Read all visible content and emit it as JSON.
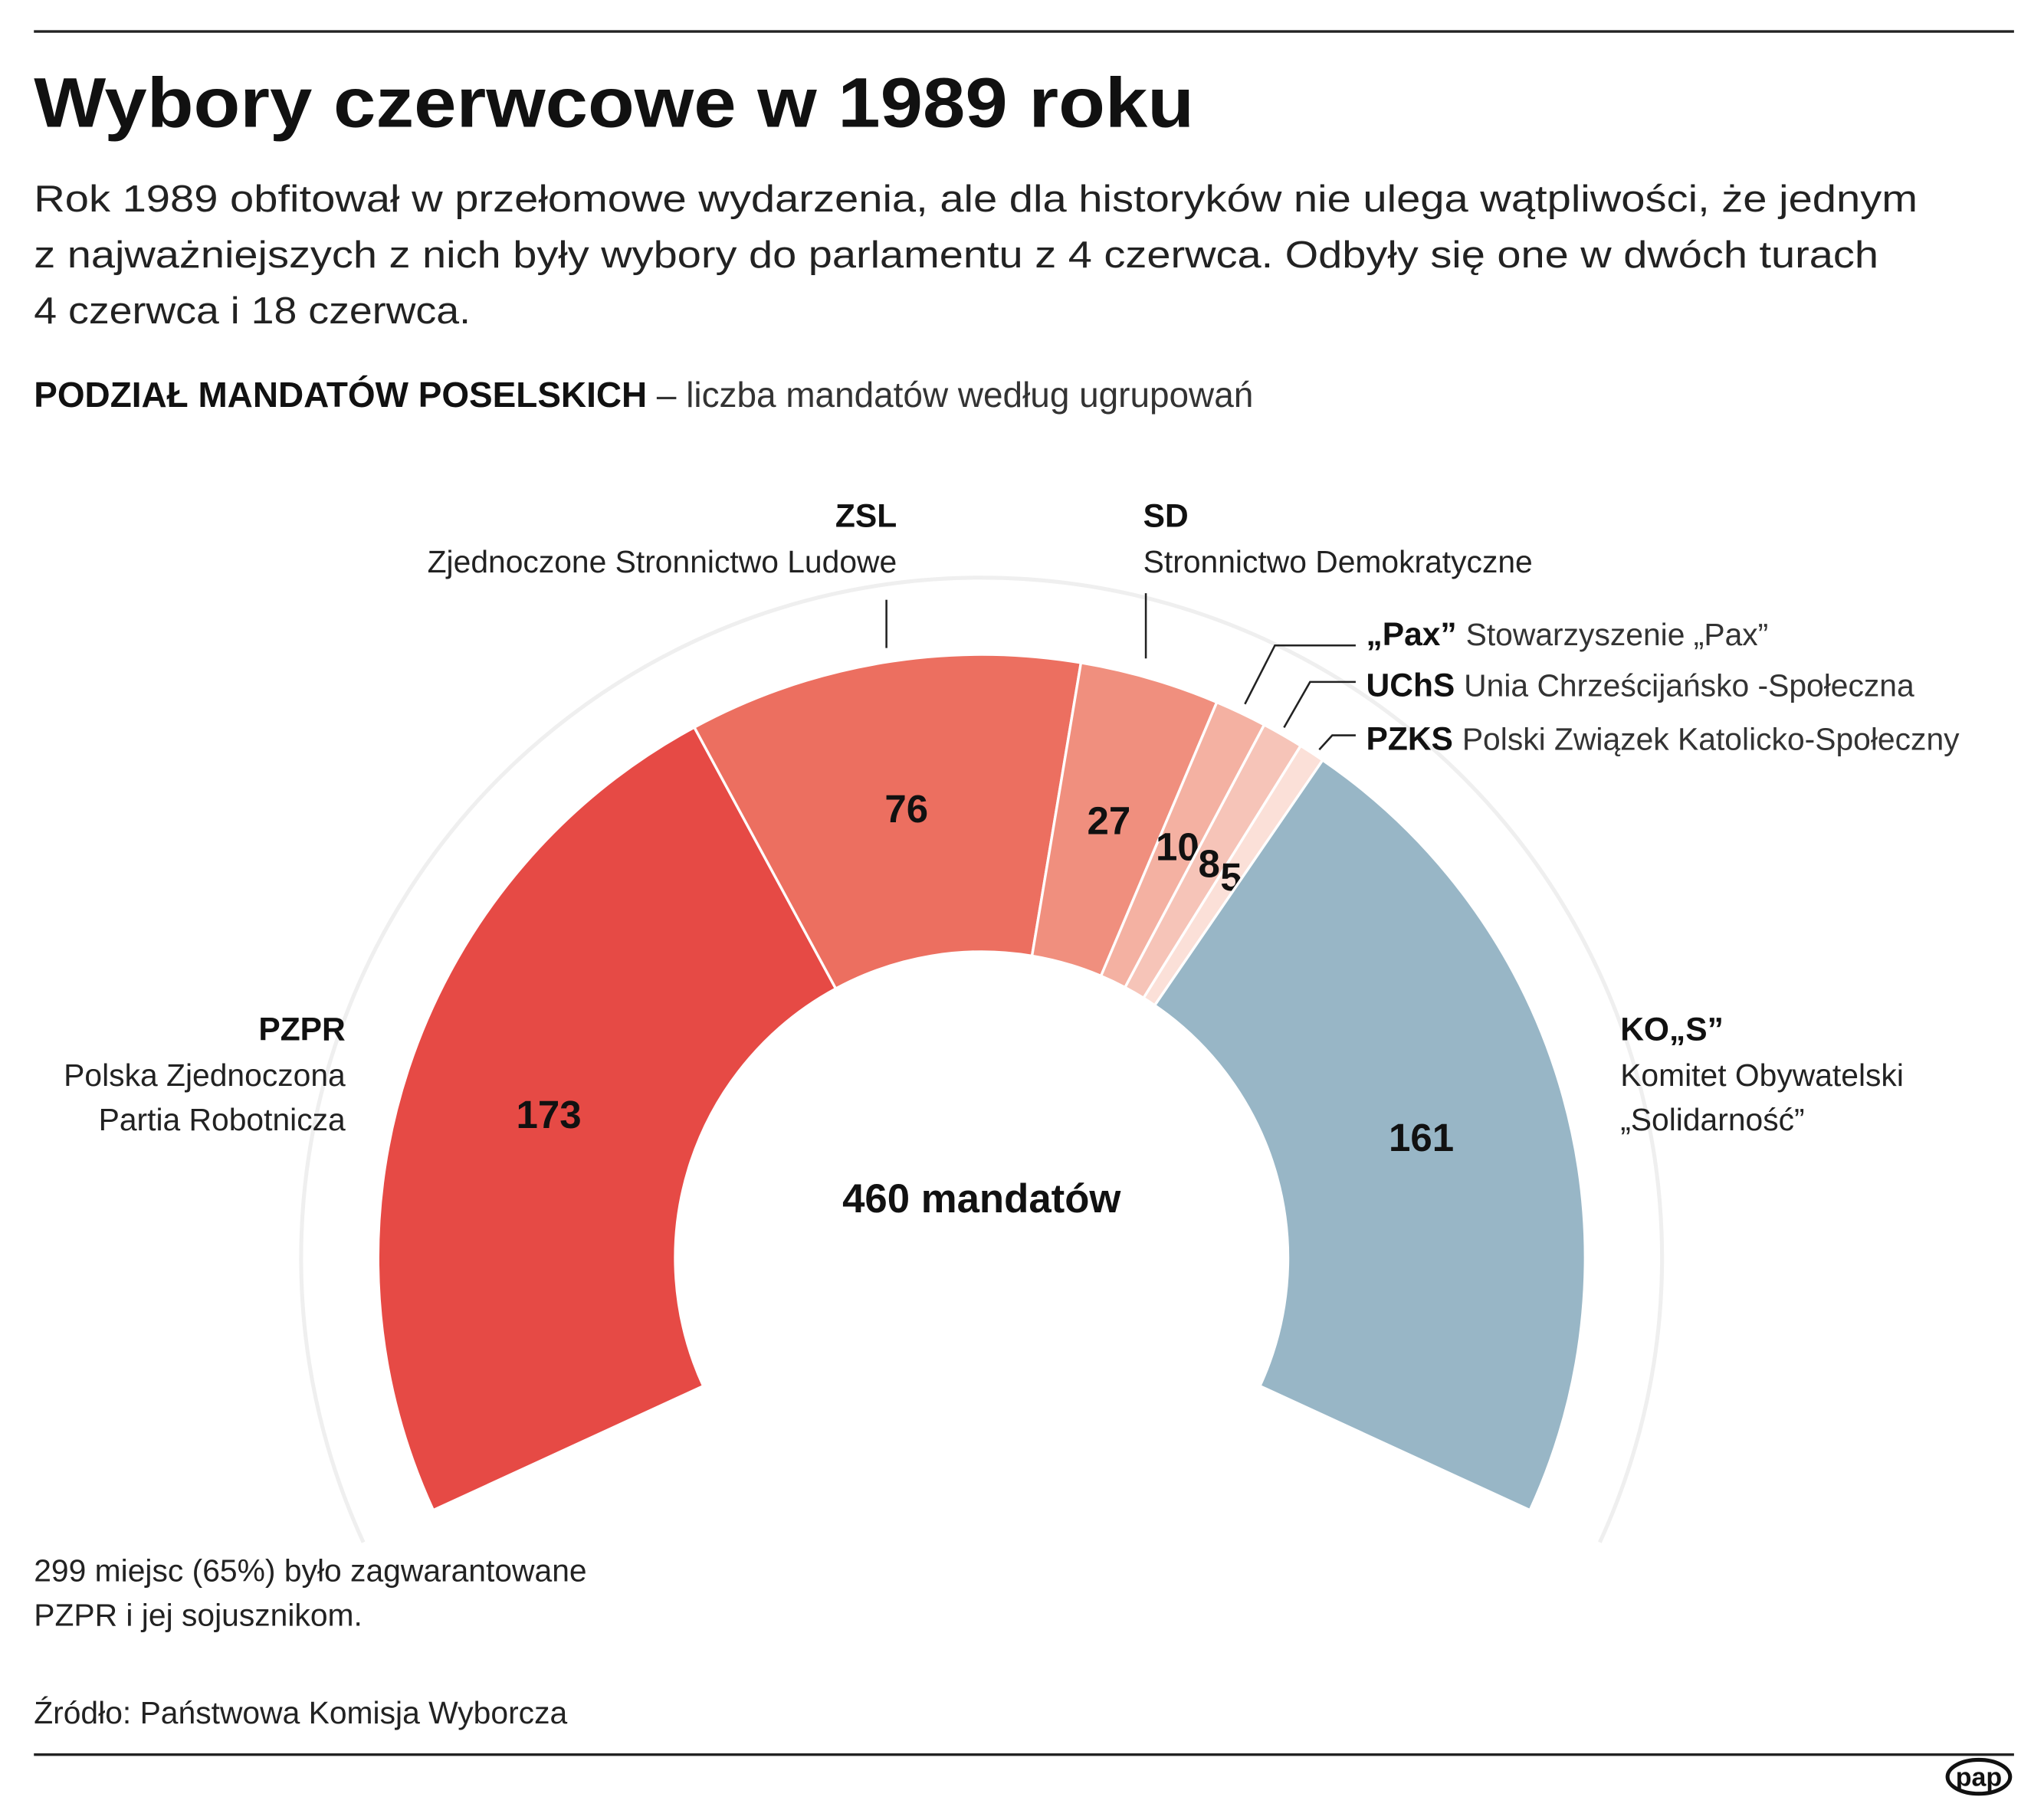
{
  "chart_data": {
    "type": "donut",
    "title": "Wybory czerwcowe w 1989 roku",
    "subtitle": [
      "Rok 1989 obfitował w przełomowe wydarzenia, ale dla historyków nie ulega wątpliwości, że jednym",
      "z najważniejszych z nich były wybory do parlamentu z 4 czerwca. Odbyły się one w dwóch turach",
      "4 czerwca i 18 czerwca."
    ],
    "heading": {
      "bold": "PODZIAŁ MANDATÓW POSELSKICH",
      "rest": " – liczba mandatów według ugrupowań"
    },
    "center_label": "460 mandatów",
    "categories": [
      "PZPR",
      "ZSL",
      "SD",
      "„Pax”",
      "UChS",
      "PZKS",
      "KO„S”"
    ],
    "descriptions": [
      [
        "Polska Zjednoczona",
        "Partia Robotnicza"
      ],
      [
        "Zjednoczone Stronnictwo Ludowe"
      ],
      [
        "Stronnictwo Demokratyczne"
      ],
      [
        "Stowarzyszenie „Pax”"
      ],
      [
        "Unia Chrześcijańsko -Społeczna"
      ],
      [
        "Polski Związek Katolicko-Społeczny"
      ],
      [
        "Komitet Obywatelski",
        "„Solidarność”"
      ]
    ],
    "values": [
      173,
      76,
      27,
      10,
      8,
      5,
      161
    ],
    "colors": [
      "#e64a45",
      "#ec6f60",
      "#f08f7e",
      "#f4b1a2",
      "#f6c4b8",
      "#fbe0d8",
      "#98b6c6"
    ],
    "note": [
      "299 miejsc (65%) było zagwarantowane",
      "PZPR i jej sojusznikom."
    ],
    "source": "Źródło: Państwowa Komisja Wyborcza",
    "logo": "pap"
  }
}
